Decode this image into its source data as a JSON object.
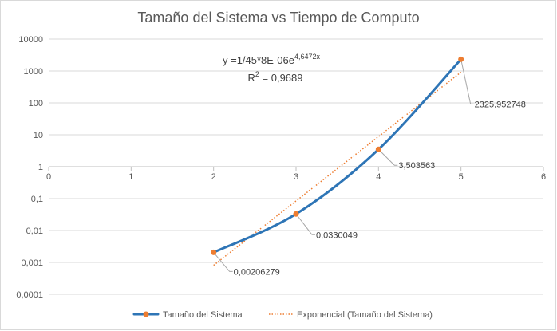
{
  "chart_data": {
    "type": "scatter",
    "title": "Tamaño del Sistema vs Tiempo de Computo",
    "xlabel": "",
    "ylabel": "",
    "xlim": [
      0,
      6
    ],
    "x_ticks": [
      "0",
      "1",
      "2",
      "3",
      "4",
      "5",
      "6"
    ],
    "ylim": [
      0.0001,
      10000
    ],
    "y_scale": "log",
    "y_ticks": [
      "10000",
      "1000",
      "100",
      "10",
      "1",
      "0,1",
      "0,01",
      "0,001",
      "0,0001"
    ],
    "grid": true,
    "legend_position": "bottom",
    "series": [
      {
        "name": "Tamaño del Sistema",
        "style": "smoothed line with markers",
        "color": "#2e75b6",
        "marker_color": "#ed7d31",
        "x": [
          2,
          3,
          4,
          5
        ],
        "y": [
          0.00206279,
          0.0330049,
          3.503563,
          2325.952748
        ],
        "data_labels": [
          "0,00206279",
          "0,0330049",
          "3,503563",
          "2325,952748"
        ]
      },
      {
        "name": "Exponencial (Tamaño del Sistema)",
        "style": "dotted trendline",
        "color": "#ed7d31",
        "x_range": [
          2,
          5
        ]
      }
    ],
    "trendline": {
      "equation_prefix": "y =1/45*8E-06e",
      "equation_exponent": "4,6472x",
      "r2_prefix": "R",
      "r2_exponent": "2",
      "r2_value": " = 0,9689"
    }
  }
}
